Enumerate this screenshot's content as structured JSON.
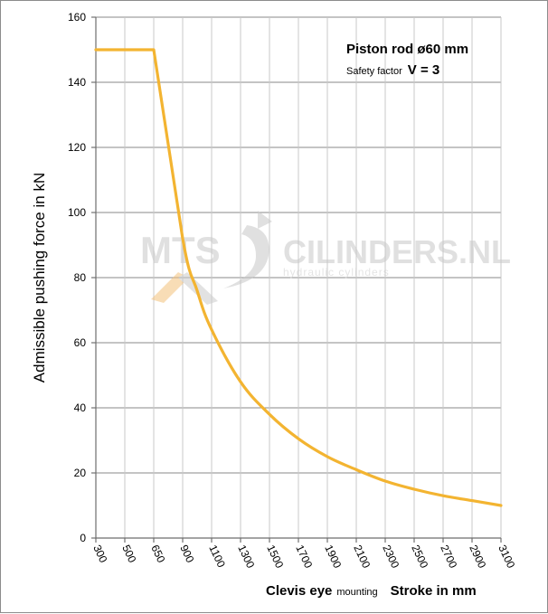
{
  "chart_data": {
    "type": "line",
    "ylabel": "Admissible pushing  force in kN",
    "x_categories": [
      "300",
      "500",
      "650",
      "900",
      "1100",
      "1300",
      "1500",
      "1700",
      "1900",
      "2100",
      "2300",
      "2500",
      "2700",
      "2900",
      "3100"
    ],
    "ylim": [
      0,
      160
    ],
    "y_ticks": [
      0,
      20,
      40,
      60,
      80,
      100,
      120,
      140,
      160
    ],
    "grid": true,
    "series": [
      {
        "color": "#f3b431",
        "points": [
          {
            "x": 300,
            "y": 150
          },
          {
            "x": 500,
            "y": 150
          },
          {
            "x": 650,
            "y": 150
          },
          {
            "x": 900,
            "y": 92
          },
          {
            "x": 1000,
            "y": 76
          },
          {
            "x": 1100,
            "y": 64
          },
          {
            "x": 1300,
            "y": 48
          },
          {
            "x": 1500,
            "y": 38
          },
          {
            "x": 1700,
            "y": 30.5
          },
          {
            "x": 1900,
            "y": 25
          },
          {
            "x": 2100,
            "y": 21
          },
          {
            "x": 2300,
            "y": 17.5
          },
          {
            "x": 2500,
            "y": 15
          },
          {
            "x": 2700,
            "y": 13
          },
          {
            "x": 2900,
            "y": 11.5
          },
          {
            "x": 3100,
            "y": 10
          }
        ]
      }
    ]
  },
  "annotation": {
    "rod_prefix": "Piston rod ",
    "rod_symbol": "ø",
    "rod_value": "60 mm",
    "safety_label": "Safety factor",
    "safety_value": "V = 3"
  },
  "xlabel": {
    "part1": "Clevis eye",
    "part2": "mounting",
    "part3": "Stroke in mm"
  },
  "watermark": {
    "left": "MTS",
    "right": "CILINDERS.NL",
    "sub": "hydraulic  cylinders"
  }
}
